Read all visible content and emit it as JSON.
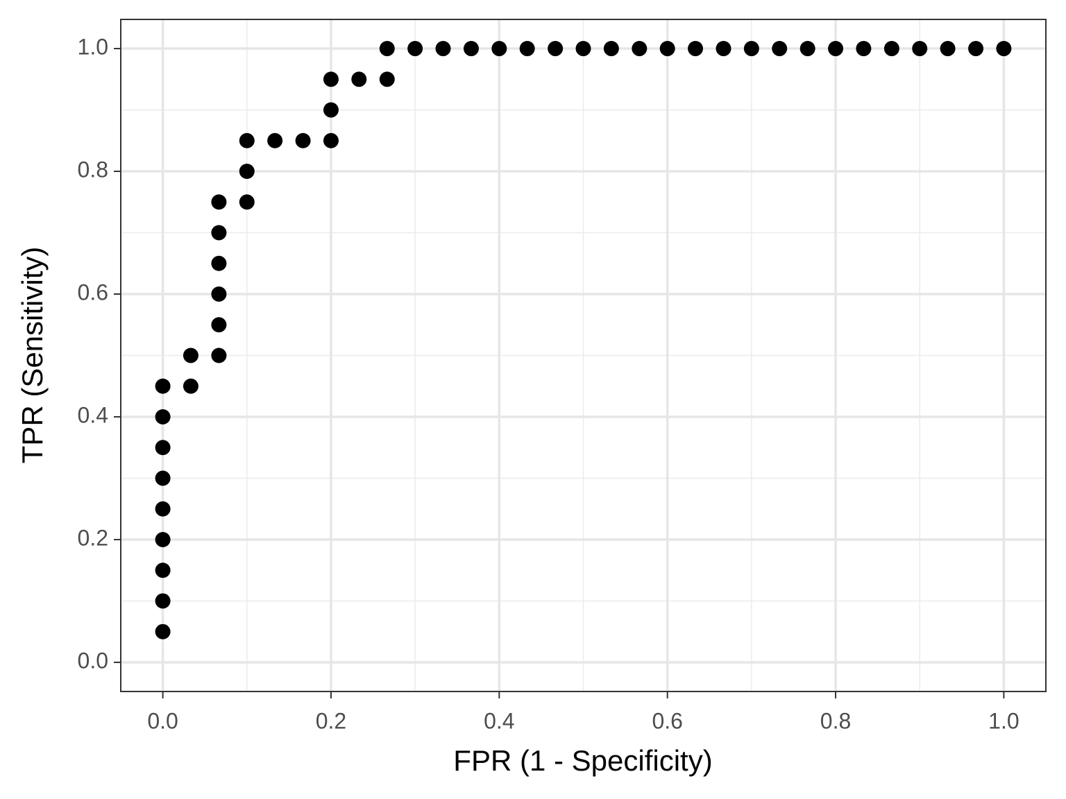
{
  "chart_data": {
    "type": "scatter",
    "x_label": "FPR (1 - Specificity)",
    "y_label": "TPR (Sensitivity)",
    "x": [
      0,
      0,
      0,
      0,
      0,
      0,
      0,
      0,
      0,
      0.0333,
      0.0333,
      0.0667,
      0.0667,
      0.0667,
      0.0667,
      0.0667,
      0.0667,
      0.1,
      0.1,
      0.1,
      0.1333,
      0.1667,
      0.2,
      0.2,
      0.2,
      0.2333,
      0.2667,
      0.2667,
      0.3,
      0.3333,
      0.3667,
      0.4,
      0.4333,
      0.4667,
      0.5,
      0.5333,
      0.5667,
      0.6,
      0.6333,
      0.6667,
      0.7,
      0.7333,
      0.7667,
      0.8,
      0.8333,
      0.8667,
      0.9,
      0.9333,
      0.9667,
      1.0
    ],
    "values": [
      0.05,
      0.1,
      0.15,
      0.2,
      0.25,
      0.3,
      0.35,
      0.4,
      0.45,
      0.45,
      0.5,
      0.5,
      0.55,
      0.6,
      0.65,
      0.7,
      0.75,
      0.75,
      0.8,
      0.85,
      0.85,
      0.85,
      0.85,
      0.9,
      0.95,
      0.95,
      0.95,
      1.0,
      1.0,
      1.0,
      1.0,
      1.0,
      1.0,
      1.0,
      1.0,
      1.0,
      1.0,
      1.0,
      1.0,
      1.0,
      1.0,
      1.0,
      1.0,
      1.0,
      1.0,
      1.0,
      1.0,
      1.0,
      1.0,
      1.0
    ],
    "color": "#000000",
    "xlim": [
      -0.05,
      1.05
    ],
    "ylim": [
      -0.0475,
      1.0475
    ],
    "xticks": [
      {
        "value": 0,
        "label": "0.0"
      },
      {
        "value": 0.2,
        "label": "0.2"
      },
      {
        "value": 0.4,
        "label": "0.4"
      },
      {
        "value": 0.6,
        "label": "0.6"
      },
      {
        "value": 0.8,
        "label": "0.8"
      },
      {
        "value": 1,
        "label": "1.0"
      }
    ],
    "yticks": [
      {
        "value": 0,
        "label": "0.0"
      },
      {
        "value": 0.2,
        "label": "0.2"
      },
      {
        "value": 0.4,
        "label": "0.4"
      },
      {
        "value": 0.6,
        "label": "0.6"
      },
      {
        "value": 0.8,
        "label": "0.8"
      },
      {
        "value": 1,
        "label": "1.0"
      }
    ],
    "xminor": [
      0.1,
      0.3,
      0.5,
      0.7,
      0.9
    ],
    "yminor": [
      0.1,
      0.3,
      0.5,
      0.7,
      0.9
    ],
    "grid": true
  }
}
